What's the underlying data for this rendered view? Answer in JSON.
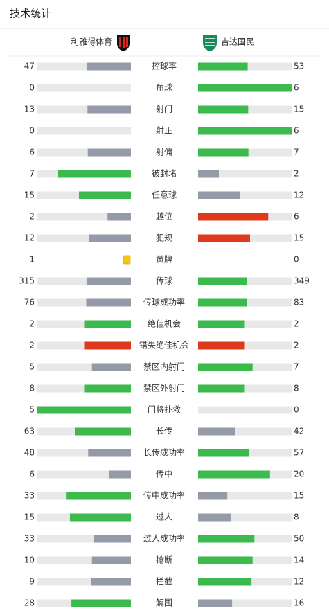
{
  "header": {
    "title": "技术统计"
  },
  "teams": {
    "home": "利雅得体育",
    "away": "吉达国民"
  },
  "stats": [
    {
      "label": "控球率",
      "home": 47,
      "away": 53,
      "home_color": "#949aa8",
      "away_color": "#3dba4e"
    },
    {
      "label": "角球",
      "home": 0,
      "away": 6,
      "home_color": "#949aa8",
      "away_color": "#3dba4e"
    },
    {
      "label": "射门",
      "home": 13,
      "away": 15,
      "home_color": "#949aa8",
      "away_color": "#3dba4e"
    },
    {
      "label": "射正",
      "home": 0,
      "away": 6,
      "home_color": "#949aa8",
      "away_color": "#3dba4e"
    },
    {
      "label": "射偏",
      "home": 6,
      "away": 7,
      "home_color": "#949aa8",
      "away_color": "#3dba4e"
    },
    {
      "label": "被封堵",
      "home": 7,
      "away": 2,
      "home_color": "#3dba4e",
      "away_color": "#949aa8"
    },
    {
      "label": "任意球",
      "home": 15,
      "away": 12,
      "home_color": "#3dba4e",
      "away_color": "#949aa8"
    },
    {
      "label": "越位",
      "home": 2,
      "away": 6,
      "home_color": "#949aa8",
      "away_color": "#e03a1e"
    },
    {
      "label": "犯规",
      "home": 12,
      "away": 15,
      "home_color": "#949aa8",
      "away_color": "#e03a1e"
    },
    {
      "label": "黄牌",
      "home": 1,
      "away": 0,
      "home_color": "#f5c518",
      "away_color": "#f5c518",
      "marker": "card"
    },
    {
      "label": "传球",
      "home": 315,
      "away": 349,
      "home_color": "#949aa8",
      "away_color": "#3dba4e"
    },
    {
      "label": "传球成功率",
      "home": 76,
      "away": 83,
      "home_color": "#949aa8",
      "away_color": "#3dba4e"
    },
    {
      "label": "绝佳机会",
      "home": 2,
      "away": 2,
      "home_color": "#3dba4e",
      "away_color": "#3dba4e"
    },
    {
      "label": "错失绝佳机会",
      "home": 2,
      "away": 2,
      "home_color": "#e03a1e",
      "away_color": "#e03a1e"
    },
    {
      "label": "禁区内射门",
      "home": 5,
      "away": 7,
      "home_color": "#949aa8",
      "away_color": "#3dba4e"
    },
    {
      "label": "禁区外射门",
      "home": 8,
      "away": 8,
      "home_color": "#3dba4e",
      "away_color": "#3dba4e"
    },
    {
      "label": "门将扑救",
      "home": 5,
      "away": 0,
      "home_color": "#3dba4e",
      "away_color": "#949aa8"
    },
    {
      "label": "长传",
      "home": 63,
      "away": 42,
      "home_color": "#3dba4e",
      "away_color": "#949aa8"
    },
    {
      "label": "长传成功率",
      "home": 48,
      "away": 57,
      "home_color": "#949aa8",
      "away_color": "#3dba4e"
    },
    {
      "label": "传中",
      "home": 6,
      "away": 20,
      "home_color": "#949aa8",
      "away_color": "#3dba4e"
    },
    {
      "label": "传中成功率",
      "home": 33,
      "away": 15,
      "home_color": "#3dba4e",
      "away_color": "#949aa8"
    },
    {
      "label": "过人",
      "home": 15,
      "away": 8,
      "home_color": "#3dba4e",
      "away_color": "#949aa8"
    },
    {
      "label": "过人成功率",
      "home": 33,
      "away": 50,
      "home_color": "#949aa8",
      "away_color": "#3dba4e"
    },
    {
      "label": "抢断",
      "home": 10,
      "away": 14,
      "home_color": "#949aa8",
      "away_color": "#3dba4e"
    },
    {
      "label": "拦截",
      "home": 9,
      "away": 12,
      "home_color": "#949aa8",
      "away_color": "#3dba4e"
    },
    {
      "label": "解围",
      "home": 28,
      "away": 16,
      "home_color": "#3dba4e",
      "away_color": "#949aa8"
    }
  ]
}
